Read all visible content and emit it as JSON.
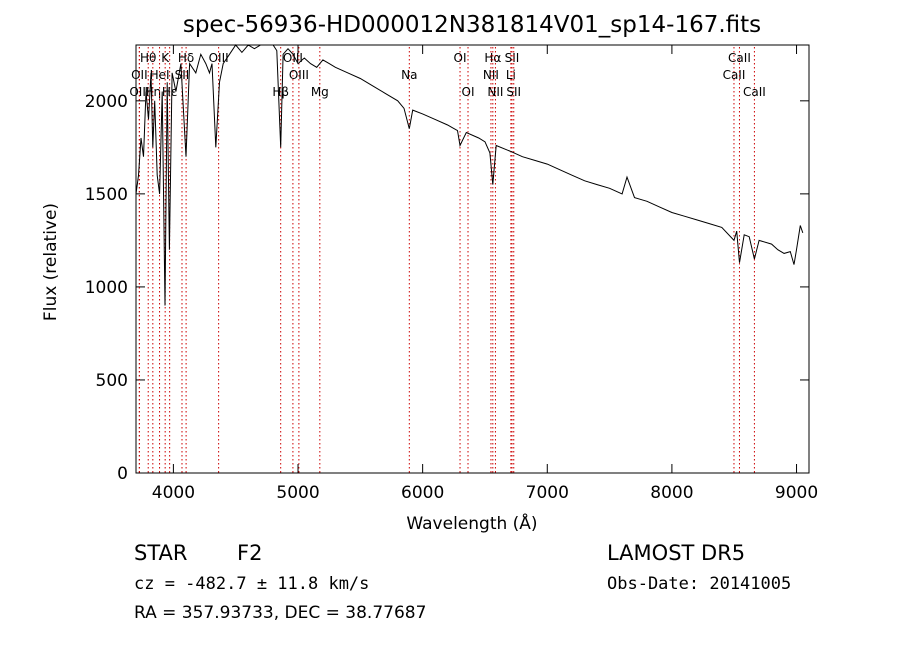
{
  "chart_data": {
    "type": "line",
    "title": "spec-56936-HD000012N381814V01_sp14-167.fits",
    "xlabel": "Wavelength (Å)",
    "ylabel": "Flux (relative)",
    "xlim": [
      3700,
      9100
    ],
    "ylim": [
      0,
      2300
    ],
    "xticks": [
      4000,
      5000,
      6000,
      7000,
      8000,
      9000
    ],
    "yticks": [
      0,
      500,
      1000,
      1500,
      2000
    ],
    "grid": false,
    "series": [
      {
        "x": [
          3700,
          3720,
          3740,
          3760,
          3780,
          3800,
          3820,
          3835,
          3850,
          3870,
          3889,
          3910,
          3933,
          3950,
          3968,
          3990,
          4020,
          4060,
          4101,
          4130,
          4180,
          4220,
          4260,
          4290,
          4310,
          4340,
          4370,
          4400,
          4450,
          4500,
          4550,
          4600,
          4650,
          4700,
          4750,
          4800,
          4830,
          4861,
          4880,
          4920,
          4960,
          5000,
          5050,
          5100,
          5150,
          5200,
          5250,
          5300,
          5400,
          5500,
          5600,
          5700,
          5800,
          5850,
          5893,
          5920,
          6000,
          6100,
          6200,
          6280,
          6300,
          6350,
          6450,
          6500,
          6540,
          6563,
          6590,
          6700,
          6800,
          6900,
          7000,
          7100,
          7200,
          7300,
          7400,
          7500,
          7600,
          7640,
          7700,
          7800,
          7900,
          8000,
          8100,
          8200,
          8300,
          8400,
          8498,
          8520,
          8542,
          8580,
          8620,
          8662,
          8700,
          8800,
          8850,
          8900,
          8950,
          8980,
          9000,
          9030,
          9050
        ],
        "y": [
          1500,
          1600,
          1800,
          1700,
          2050,
          1900,
          2150,
          1750,
          2000,
          1600,
          1500,
          2050,
          900,
          2100,
          1200,
          2150,
          2050,
          2200,
          1700,
          2200,
          2150,
          2250,
          2200,
          2150,
          2200,
          1750,
          2100,
          2200,
          2250,
          2300,
          2260,
          2300,
          2280,
          2320,
          2330,
          2300,
          2270,
          1750,
          2250,
          2280,
          2250,
          2200,
          2230,
          2200,
          2180,
          2220,
          2200,
          2180,
          2150,
          2120,
          2080,
          2040,
          2000,
          1960,
          1850,
          1950,
          1930,
          1900,
          1870,
          1840,
          1760,
          1830,
          1800,
          1780,
          1720,
          1550,
          1760,
          1730,
          1700,
          1680,
          1660,
          1630,
          1600,
          1570,
          1550,
          1530,
          1500,
          1590,
          1480,
          1460,
          1430,
          1400,
          1380,
          1360,
          1340,
          1320,
          1250,
          1300,
          1130,
          1280,
          1270,
          1150,
          1250,
          1230,
          1200,
          1180,
          1190,
          1120,
          1200,
          1330,
          1290
        ]
      }
    ],
    "lines": [
      {
        "name": "Hθ",
        "wl": 3798,
        "row": 0
      },
      {
        "name": "OII",
        "wl": 3727,
        "row": 1
      },
      {
        "name": "OIII",
        "wl": 3727,
        "row": 2
      },
      {
        "name": "Hη",
        "wl": 3835,
        "row": 2
      },
      {
        "name": "HeI",
        "wl": 3889,
        "row": 1
      },
      {
        "name": "K",
        "wl": 3934,
        "row": 0
      },
      {
        "name": "Hε",
        "wl": 3970,
        "row": 2
      },
      {
        "name": "SII",
        "wl": 4069,
        "row": 1
      },
      {
        "name": "Hδ",
        "wl": 4102,
        "row": 0
      },
      {
        "name": "OIII",
        "wl": 4363,
        "row": 0
      },
      {
        "name": "Hβ",
        "wl": 4861,
        "row": 2
      },
      {
        "name": "OIII",
        "wl": 4959,
        "row": 0
      },
      {
        "name": "OIII",
        "wl": 5007,
        "row": 1
      },
      {
        "name": "Mg",
        "wl": 5175,
        "row": 2
      },
      {
        "name": "Na",
        "wl": 5893,
        "row": 1
      },
      {
        "name": "OI",
        "wl": 6300,
        "row": 0
      },
      {
        "name": "OI",
        "wl": 6364,
        "row": 2
      },
      {
        "name": "Hα",
        "wl": 6563,
        "row": 0
      },
      {
        "name": "NII",
        "wl": 6548,
        "row": 1
      },
      {
        "name": "NII",
        "wl": 6584,
        "row": 2
      },
      {
        "name": "Li",
        "wl": 6708,
        "row": 1
      },
      {
        "name": "SII",
        "wl": 6717,
        "row": 0
      },
      {
        "name": "SII",
        "wl": 6731,
        "row": 2
      },
      {
        "name": "CaII",
        "wl": 8498,
        "row": 1
      },
      {
        "name": "CaII",
        "wl": 8542,
        "row": 0
      },
      {
        "name": "CaII",
        "wl": 8662,
        "row": 2
      }
    ]
  },
  "info": {
    "object_class": "STAR",
    "subclass": "F2",
    "redshift": "cz = -482.7 ± 11.8 km/s",
    "coords": "RA = 357.93733, DEC =  38.77687",
    "survey": "LAMOST DR5",
    "obs_date": "Obs-Date: 20141005"
  }
}
